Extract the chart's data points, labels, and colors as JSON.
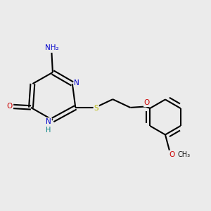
{
  "background_color": "#ebebeb",
  "atom_colors": {
    "C": "#000000",
    "N": "#0000cc",
    "O": "#cc0000",
    "S": "#b8b800",
    "H": "#008080"
  },
  "bond_color": "#000000",
  "bond_width": 1.5
}
